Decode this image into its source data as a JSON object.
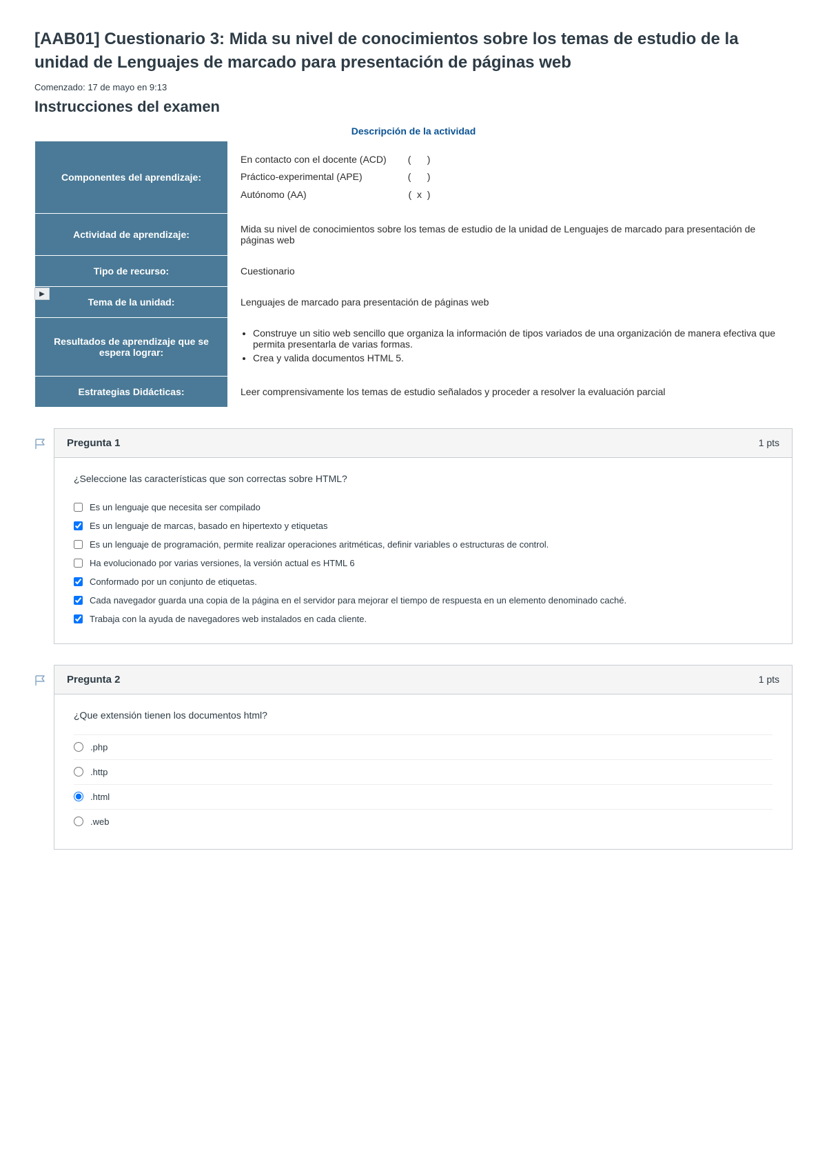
{
  "page": {
    "title": "[AAB01] Cuestionario 3: Mida su nivel de conocimientos sobre los temas de estudio de la unidad de Lenguajes de marcado para presentación de páginas web",
    "started": "Comenzado: 17 de mayo en 9:13",
    "instructions_heading": "Instrucciones del examen"
  },
  "activity": {
    "caption": "Descripción de la actividad",
    "rows": {
      "componentes": {
        "label": "Componentes del aprendizaje:",
        "line1": "En contacto con el docente (ACD)        (      )",
        "line2": "Práctico-experimental (APE)                 (      )",
        "line3": "Autónomo (AA)                                      (  x  )"
      },
      "actividad": {
        "label": "Actividad de aprendizaje:",
        "value": "Mida su nivel de conocimientos sobre los temas de estudio de la unidad de Lenguajes de marcado para presentación de páginas web"
      },
      "tipo": {
        "label": "Tipo de recurso:",
        "value": "Cuestionario"
      },
      "tema": {
        "label": "Tema de la unidad:",
        "value": "Lenguajes de marcado para presentación de páginas web"
      },
      "resultados": {
        "label": "Resultados de aprendizaje que se espera lograr:",
        "item1": "Construye un sitio web sencillo que organiza la información de tipos variados de una organización de manera efectiva que permita presentarla de varias formas.",
        "item2": "Crea y valida documentos HTML 5."
      },
      "estrategias": {
        "label": "Estrategias Didácticas:",
        "value": "Leer comprensivamente los temas de estudio señalados y proceder a resolver la evaluación parcial"
      }
    }
  },
  "questions": {
    "q1": {
      "title": "Pregunta 1",
      "points": "1 pts",
      "text": "¿Seleccione las características que son correctas sobre HTML?",
      "options": [
        {
          "label": "Es un lenguaje que necesita ser compilado",
          "checked": false
        },
        {
          "label": "Es un lenguaje de marcas, basado en hipertexto y etiquetas",
          "checked": true
        },
        {
          "label": "Es un lenguaje de programación, permite realizar operaciones aritméticas, definir variables o estructuras de control.",
          "checked": false
        },
        {
          "label": "Ha evolucionado por varias versiones, la versión actual es HTML 6",
          "checked": false
        },
        {
          "label": "Conformado por un conjunto de etiquetas.",
          "checked": true
        },
        {
          "label": "Cada navegador guarda una copia de la página en el servidor para mejorar el tiempo de respuesta en un elemento denominado caché.",
          "checked": true
        },
        {
          "label": "Trabaja con la ayuda de navegadores web instalados en cada cliente.",
          "checked": true
        }
      ]
    },
    "q2": {
      "title": "Pregunta 2",
      "points": "1 pts",
      "text": "¿Que extensión tienen los documentos html?",
      "options": [
        {
          "label": ".php",
          "checked": false
        },
        {
          "label": ".http",
          "checked": false
        },
        {
          "label": ".html",
          "checked": true
        },
        {
          "label": ".web",
          "checked": false
        }
      ]
    }
  },
  "colors": {
    "header_bg": "#4a7a97",
    "link_accent": "#0b5394",
    "border": "#c7cdd1",
    "checkbox_accent": "#0374ff"
  }
}
